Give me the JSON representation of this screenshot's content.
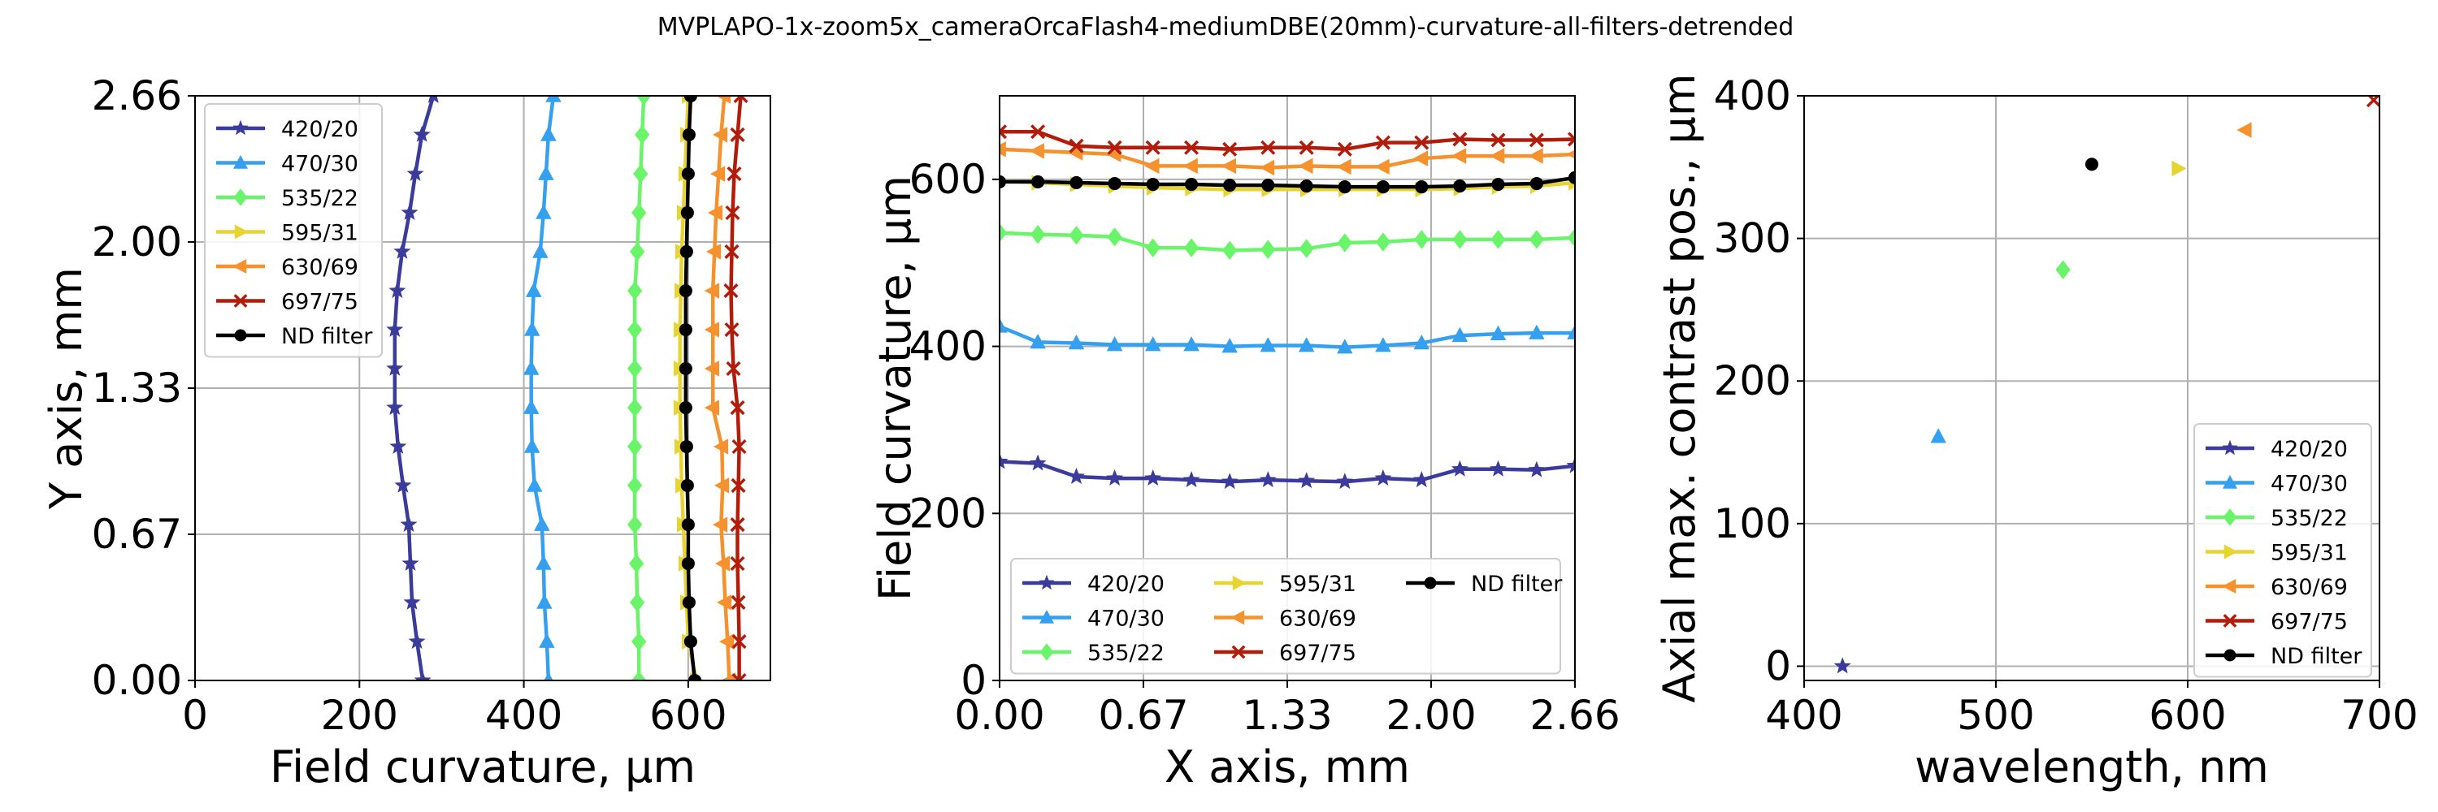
{
  "figure": {
    "suptitle": "MVPLAPO-1x-zoom5x_cameraOrcaFlash4-mediumDBE(20mm)-curvature-all-filters-detrended"
  },
  "series_styles": [
    {
      "name": "420/20",
      "color": "#3a3b9a",
      "marker": "star"
    },
    {
      "name": "470/30",
      "color": "#35a0ef",
      "marker": "triangle-up"
    },
    {
      "name": "535/22",
      "color": "#6af46a",
      "marker": "diamond"
    },
    {
      "name": "595/31",
      "color": "#e8d431",
      "marker": "triangle-right"
    },
    {
      "name": "630/69",
      "color": "#f5922e",
      "marker": "triangle-left"
    },
    {
      "name": "697/75",
      "color": "#b21c0a",
      "marker": "x"
    },
    {
      "name": "ND filter",
      "color": "#000000",
      "marker": "circle"
    }
  ],
  "chart_data": [
    {
      "type": "line",
      "xlabel": "Field curvature, µm",
      "ylabel": "Y axis, mm",
      "xlim": [
        0,
        700
      ],
      "ylim": [
        0,
        2.66
      ],
      "xticks": [
        0,
        200,
        400,
        600
      ],
      "xtick_labels": [
        "0",
        "200",
        "400",
        "600"
      ],
      "yticks": [
        0,
        0.665,
        1.33,
        1.995,
        2.66
      ],
      "ytick_labels": [
        "0.00",
        "0.67",
        "1.33",
        "2.00",
        "2.66"
      ],
      "grid": true,
      "legend_position": "top-left",
      "y": [
        0.0,
        0.177,
        0.355,
        0.532,
        0.709,
        0.887,
        1.064,
        1.241,
        1.419,
        1.596,
        1.773,
        1.951,
        2.128,
        2.305,
        2.483,
        2.66
      ],
      "series": [
        {
          "name": "420/20",
          "values": [
            277,
            270,
            264,
            262,
            260,
            253,
            247,
            243,
            243,
            243,
            246,
            252,
            261,
            268,
            276,
            290
          ]
        },
        {
          "name": "470/30",
          "values": [
            430,
            428,
            425,
            424,
            422,
            413,
            410,
            409,
            409,
            410,
            412,
            420,
            424,
            427,
            430,
            436
          ]
        },
        {
          "name": "535/22",
          "values": [
            540,
            540,
            538,
            537,
            535,
            535,
            535,
            535,
            535,
            535,
            535,
            538,
            540,
            542,
            544,
            546
          ]
        },
        {
          "name": "595/31",
          "values": [
            610,
            600,
            598,
            596,
            594,
            592,
            591,
            590,
            590,
            590,
            591,
            592,
            594,
            596,
            598,
            600
          ]
        },
        {
          "name": "630/69",
          "values": [
            650,
            648,
            645,
            643,
            640,
            642,
            641,
            630,
            630,
            630,
            630,
            632,
            634,
            637,
            640,
            644
          ]
        },
        {
          "name": "697/75",
          "values": [
            662,
            662,
            661,
            660,
            660,
            661,
            662,
            660,
            655,
            653,
            652,
            653,
            654,
            656,
            660,
            664
          ]
        },
        {
          "name": "ND filter",
          "values": [
            608,
            603,
            601,
            600,
            600,
            599,
            598,
            597,
            597,
            597,
            597,
            598,
            599,
            600,
            601,
            603
          ]
        }
      ]
    },
    {
      "type": "line",
      "xlabel": "X axis, mm",
      "ylabel": "Field curvature, µm",
      "xlim": [
        0,
        2.66
      ],
      "ylim": [
        0,
        700
      ],
      "xticks": [
        0,
        0.665,
        1.33,
        1.995,
        2.66
      ],
      "xtick_labels": [
        "0.00",
        "0.67",
        "1.33",
        "2.00",
        "2.66"
      ],
      "yticks": [
        0,
        200,
        400,
        600
      ],
      "ytick_labels": [
        "0",
        "200",
        "400",
        "600"
      ],
      "grid": true,
      "legend_position": "bottom",
      "x": [
        0.0,
        0.177,
        0.355,
        0.532,
        0.709,
        0.887,
        1.064,
        1.241,
        1.419,
        1.596,
        1.773,
        1.951,
        2.128,
        2.305,
        2.483,
        2.66
      ],
      "series": [
        {
          "name": "420/20",
          "values": [
            262,
            260,
            244,
            242,
            242,
            240,
            238,
            240,
            239,
            238,
            242,
            240,
            253,
            253,
            252,
            257
          ]
        },
        {
          "name": "470/30",
          "values": [
            424,
            405,
            404,
            402,
            402,
            402,
            400,
            401,
            401,
            399,
            401,
            404,
            413,
            415,
            416,
            416
          ]
        },
        {
          "name": "535/22",
          "values": [
            536,
            534,
            533,
            531,
            518,
            518,
            515,
            516,
            517,
            524,
            525,
            528,
            528,
            528,
            528,
            530
          ]
        },
        {
          "name": "595/31",
          "values": [
            598,
            596,
            594,
            592,
            590,
            589,
            588,
            588,
            588,
            588,
            588,
            588,
            589,
            591,
            592,
            596
          ]
        },
        {
          "name": "630/69",
          "values": [
            636,
            634,
            632,
            630,
            616,
            616,
            616,
            614,
            616,
            615,
            615,
            625,
            628,
            628,
            628,
            630
          ]
        },
        {
          "name": "697/75",
          "values": [
            657,
            657,
            640,
            638,
            638,
            638,
            636,
            638,
            638,
            636,
            644,
            644,
            648,
            647,
            647,
            648
          ]
        },
        {
          "name": "ND filter",
          "values": [
            597,
            597,
            596,
            595,
            594,
            594,
            593,
            593,
            592,
            591,
            591,
            591,
            592,
            594,
            595,
            602
          ]
        }
      ]
    },
    {
      "type": "scatter",
      "xlabel": "wavelength, nm",
      "ylabel": "Axial max. contrast pos., µm",
      "xlim": [
        400,
        700
      ],
      "ylim": [
        -10,
        400
      ],
      "xticks": [
        400,
        500,
        600,
        700
      ],
      "xtick_labels": [
        "400",
        "500",
        "600",
        "700"
      ],
      "yticks": [
        0,
        100,
        200,
        300,
        400
      ],
      "ytick_labels": [
        "0",
        "100",
        "200",
        "300",
        "400"
      ],
      "grid": true,
      "legend_position": "bottom-right",
      "series": [
        {
          "name": "420/20",
          "x": [
            420
          ],
          "y": [
            0
          ]
        },
        {
          "name": "470/30",
          "x": [
            470
          ],
          "y": [
            161
          ]
        },
        {
          "name": "535/22",
          "x": [
            535
          ],
          "y": [
            278
          ]
        },
        {
          "name": "595/31",
          "x": [
            595
          ],
          "y": [
            349
          ]
        },
        {
          "name": "630/69",
          "x": [
            630
          ],
          "y": [
            376
          ]
        },
        {
          "name": "697/75",
          "x": [
            697
          ],
          "y": [
            397
          ]
        },
        {
          "name": "ND filter",
          "x": [
            550
          ],
          "y": [
            352
          ]
        }
      ]
    }
  ]
}
